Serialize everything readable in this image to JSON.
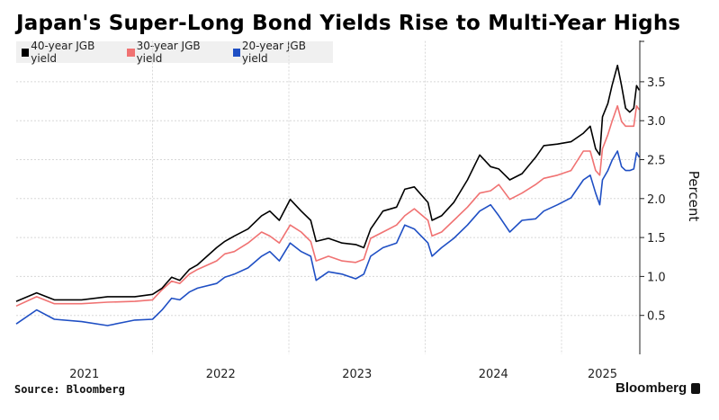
{
  "colors": {
    "s40": "#000000",
    "s30": "#f07272",
    "s20": "#1f4fc4",
    "grid": "#d8d8d8",
    "legend_bg": "#f0f0f0"
  },
  "chart_data": {
    "type": "line",
    "title": "Japan's Super-Long Bond Yields Rise to Multi-Year Highs",
    "xlabel": "",
    "ylabel": "Percent",
    "ylim": [
      0,
      4.0
    ],
    "xlim": [
      2021.0,
      2025.574
    ],
    "yticks": [
      "0.5",
      "1.0",
      "1.5",
      "2.0",
      "2.5",
      "3.0",
      "3.5"
    ],
    "ytick_values": [
      0.5,
      1.0,
      1.5,
      2.0,
      2.5,
      3.0,
      3.5
    ],
    "xticks": [
      "2021",
      "2022",
      "2023",
      "2024",
      "2025"
    ],
    "grid": true,
    "legend_position": "top-left",
    "x": [
      2021.0,
      2021.15,
      2021.28,
      2021.48,
      2021.67,
      2021.87,
      2022.0,
      2022.07,
      2022.14,
      2022.2,
      2022.27,
      2022.33,
      2022.47,
      2022.53,
      2022.6,
      2022.7,
      2022.8,
      2022.86,
      2022.93,
      2023.01,
      2023.09,
      2023.16,
      2023.2,
      2023.29,
      2023.39,
      2023.49,
      2023.55,
      2023.6,
      2023.69,
      2023.79,
      2023.85,
      2023.92,
      2024.02,
      2024.05,
      2024.12,
      2024.21,
      2024.31,
      2024.4,
      2024.48,
      2024.54,
      2024.62,
      2024.71,
      2024.81,
      2024.87,
      2024.97,
      2025.07,
      2025.16,
      2025.21,
      2025.25,
      2025.28,
      2025.3,
      2025.34,
      2025.37,
      2025.41,
      2025.44,
      2025.47,
      2025.5,
      2025.53,
      2025.55,
      2025.57
    ],
    "series": [
      {
        "name": "40-year JGB yield",
        "color": "#000000",
        "values": [
          0.68,
          0.79,
          0.7,
          0.7,
          0.74,
          0.74,
          0.77,
          0.85,
          0.99,
          0.95,
          1.09,
          1.15,
          1.37,
          1.45,
          1.52,
          1.61,
          1.78,
          1.84,
          1.72,
          1.99,
          1.84,
          1.72,
          1.45,
          1.49,
          1.43,
          1.41,
          1.37,
          1.61,
          1.84,
          1.89,
          2.12,
          2.15,
          1.95,
          1.72,
          1.78,
          1.95,
          2.24,
          2.56,
          2.41,
          2.38,
          2.24,
          2.32,
          2.53,
          2.68,
          2.7,
          2.73,
          2.84,
          2.93,
          2.64,
          2.56,
          3.05,
          3.22,
          3.45,
          3.71,
          3.45,
          3.16,
          3.11,
          3.16,
          3.45,
          3.39
        ]
      },
      {
        "name": "30-year JGB yield",
        "color": "#f07272",
        "values": [
          0.62,
          0.74,
          0.65,
          0.65,
          0.67,
          0.68,
          0.7,
          0.83,
          0.94,
          0.91,
          1.03,
          1.09,
          1.2,
          1.29,
          1.32,
          1.43,
          1.57,
          1.52,
          1.43,
          1.66,
          1.57,
          1.45,
          1.2,
          1.26,
          1.2,
          1.18,
          1.22,
          1.49,
          1.57,
          1.66,
          1.78,
          1.87,
          1.72,
          1.52,
          1.57,
          1.72,
          1.89,
          2.07,
          2.1,
          2.18,
          1.99,
          2.07,
          2.18,
          2.26,
          2.3,
          2.36,
          2.61,
          2.61,
          2.36,
          2.3,
          2.64,
          2.82,
          2.99,
          3.19,
          2.99,
          2.93,
          2.93,
          2.93,
          3.19,
          3.14
        ]
      },
      {
        "name": "20-year JGB yield",
        "color": "#1f4fc4",
        "values": [
          0.39,
          0.57,
          0.45,
          0.42,
          0.37,
          0.44,
          0.45,
          0.57,
          0.72,
          0.7,
          0.8,
          0.85,
          0.91,
          0.99,
          1.03,
          1.11,
          1.26,
          1.32,
          1.2,
          1.43,
          1.32,
          1.26,
          0.95,
          1.06,
          1.03,
          0.97,
          1.03,
          1.26,
          1.37,
          1.43,
          1.66,
          1.61,
          1.43,
          1.26,
          1.37,
          1.49,
          1.66,
          1.84,
          1.92,
          1.78,
          1.57,
          1.72,
          1.74,
          1.84,
          1.92,
          2.01,
          2.24,
          2.3,
          2.07,
          1.92,
          2.24,
          2.36,
          2.49,
          2.61,
          2.41,
          2.36,
          2.36,
          2.38,
          2.59,
          2.53
        ]
      }
    ]
  },
  "footer": {
    "source": "Source: Bloomberg",
    "brand": "Bloomberg"
  }
}
